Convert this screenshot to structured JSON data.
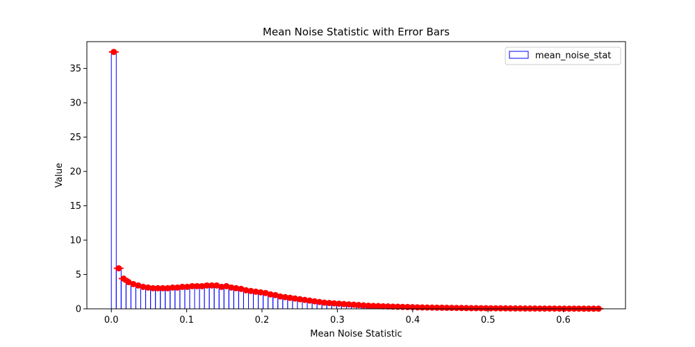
{
  "chart_data": {
    "type": "bar",
    "title": "Mean Noise Statistic with Error Bars",
    "xlabel": "Mean Noise Statistic",
    "ylabel": "Value",
    "xlim": [
      -0.0325,
      0.6825
    ],
    "ylim": [
      0,
      38.9
    ],
    "xticks": [
      0.0,
      0.1,
      0.2,
      0.3,
      0.4,
      0.5,
      0.6
    ],
    "xtick_labels": [
      "0.0",
      "0.1",
      "0.2",
      "0.3",
      "0.4",
      "0.5",
      "0.6"
    ],
    "yticks": [
      0,
      5,
      10,
      15,
      20,
      25,
      30,
      35
    ],
    "ytick_labels": [
      "0",
      "5",
      "10",
      "15",
      "20",
      "25",
      "30",
      "35"
    ],
    "grid": false,
    "legend": {
      "position": "top-right",
      "entries": [
        "mean_noise_stat"
      ]
    },
    "colors": {
      "bar_edge": "#0000ff",
      "marker": "#ff0000"
    },
    "bin_width": 0.0065,
    "series": [
      {
        "name": "mean_noise_stat",
        "bin_start": 0.0,
        "values": [
          37.4,
          5.9,
          4.4,
          3.9,
          3.6,
          3.4,
          3.2,
          3.1,
          3.0,
          3.0,
          3.0,
          3.0,
          3.1,
          3.1,
          3.2,
          3.2,
          3.3,
          3.3,
          3.3,
          3.4,
          3.4,
          3.4,
          3.2,
          3.3,
          3.1,
          3.0,
          2.9,
          2.7,
          2.6,
          2.5,
          2.4,
          2.3,
          2.1,
          2.0,
          1.8,
          1.7,
          1.6,
          1.5,
          1.4,
          1.3,
          1.2,
          1.1,
          1.0,
          0.9,
          0.85,
          0.8,
          0.75,
          0.7,
          0.65,
          0.6,
          0.55,
          0.5,
          0.45,
          0.42,
          0.4,
          0.37,
          0.35,
          0.32,
          0.3,
          0.28,
          0.26,
          0.24,
          0.22,
          0.2,
          0.19,
          0.18,
          0.17,
          0.16,
          0.15,
          0.14,
          0.13,
          0.12,
          0.11,
          0.1,
          0.1,
          0.09,
          0.09,
          0.08,
          0.08,
          0.07,
          0.07,
          0.06,
          0.06,
          0.06,
          0.05,
          0.05,
          0.05,
          0.04,
          0.04,
          0.04,
          0.04,
          0.03,
          0.03,
          0.03,
          0.03,
          0.03,
          0.02,
          0.02,
          0.02,
          0.02
        ]
      }
    ]
  }
}
